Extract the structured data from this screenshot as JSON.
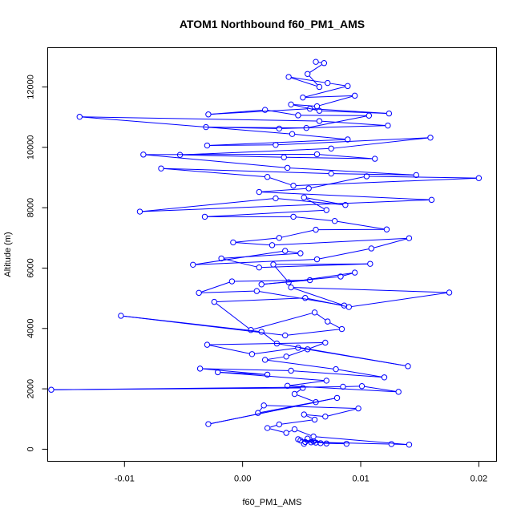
{
  "chart_data": {
    "type": "line",
    "title": "ATOM1 Northbound f60_PM1_AMS",
    "xlabel": "f60_PM1_AMS",
    "ylabel": "Altitude (m)",
    "xlim": [
      -0.0165,
      0.0215
    ],
    "ylim": [
      -400,
      13300
    ],
    "xticks": [
      -0.01,
      0.0,
      0.01,
      0.02
    ],
    "xtick_labels": [
      "-0.01",
      "0.00",
      "0.01",
      "0.02"
    ],
    "yticks": [
      0,
      2000,
      4000,
      6000,
      8000,
      10000,
      12000
    ],
    "ytick_labels": [
      "0",
      "2000",
      "4000",
      "6000",
      "8000",
      "10000",
      "12000"
    ],
    "grid": false,
    "legend": "none",
    "series": [
      {
        "color": "#0000ff",
        "marker": "open-circle",
        "x": [
          0.0052,
          0.0058,
          0.0049,
          0.0062,
          0.0055,
          0.0071,
          0.006,
          0.0047,
          0.0066,
          0.0088,
          0.0053,
          0.0126,
          0.0141,
          0.006,
          0.0044,
          0.0037,
          0.0021,
          0.0031,
          0.0061,
          0.0052,
          0.007,
          0.0098,
          0.0018,
          0.0013,
          0.008,
          -0.0029,
          0.0062,
          0.0044,
          0.0051,
          -0.0162,
          0.0085,
          0.0101,
          0.0132,
          0.0038,
          0.0071,
          -0.0021,
          0.0021,
          -0.0036,
          0.0041,
          0.012,
          0.0079,
          0.0019,
          0.0037,
          0.0055,
          0.007,
          -0.003,
          0.0008,
          0.0047,
          0.014,
          0.0029,
          0.0016,
          -0.0103,
          0.0036,
          0.0084,
          0.0072,
          0.0061,
          0.0007,
          -0.0024,
          0.0053,
          0.009,
          0.0175,
          0.0041,
          0.0086,
          0.0012,
          -0.0037,
          -0.0009,
          0.0057,
          0.0016,
          0.0083,
          0.0095,
          0.0039,
          0.0026,
          0.0108,
          0.0014,
          -0.0018,
          0.0049,
          0.0036,
          -0.0042,
          0.0063,
          0.0109,
          0.0141,
          0.0025,
          -0.0008,
          0.0031,
          0.0062,
          0.0122,
          0.0078,
          0.0043,
          -0.0032,
          0.0071,
          0.0052,
          0.0087,
          0.0028,
          -0.0087,
          0.016,
          0.0014,
          0.0056,
          0.0105,
          0.02,
          0.0043,
          0.0021,
          -0.0069,
          0.0075,
          0.0147,
          0.0038,
          -0.0084,
          0.0063,
          0.0112,
          0.0035,
          -0.0053,
          0.0075,
          0.0159,
          0.0028,
          -0.003,
          0.0089,
          0.0042,
          -0.0138,
          0.0065,
          0.0123,
          0.0031,
          -0.0031,
          0.0054,
          0.0107,
          0.0047,
          0.0019,
          -0.0029,
          0.0057,
          0.0124,
          0.0065,
          0.0041,
          0.0063,
          0.0095,
          0.0051,
          0.0089,
          0.0072,
          0.0039,
          0.0065,
          0.0055,
          0.0069,
          0.0062
        ],
        "y": [
          180,
          230,
          290,
          220,
          350,
          190,
          260,
          330,
          200,
          180,
          240,
          170,
          150,
          420,
          660,
          540,
          700,
          820,
          980,
          1150,
          1080,
          1350,
          1450,
          1200,
          1700,
          830,
          1560,
          1830,
          2030,
          1970,
          2070,
          2090,
          1900,
          2100,
          2270,
          2550,
          2470,
          2670,
          2600,
          2380,
          2650,
          2960,
          3070,
          3310,
          3530,
          3460,
          3150,
          3360,
          2750,
          3500,
          3890,
          4420,
          3770,
          3980,
          4230,
          4530,
          3950,
          4880,
          5010,
          4710,
          5190,
          5360,
          4760,
          5240,
          5180,
          5560,
          5600,
          5460,
          5720,
          5850,
          5530,
          6120,
          6140,
          6020,
          6320,
          6490,
          6570,
          6110,
          6290,
          6650,
          6990,
          6760,
          6850,
          7000,
          7270,
          7280,
          7560,
          7700,
          7700,
          7920,
          8340,
          8090,
          8310,
          7870,
          8260,
          8520,
          8640,
          9040,
          8980,
          8730,
          9020,
          9300,
          9130,
          9080,
          9320,
          9760,
          9770,
          9620,
          9670,
          9750,
          9960,
          10320,
          10080,
          10060,
          10260,
          10440,
          11010,
          10870,
          10720,
          10620,
          10670,
          10640,
          11050,
          11060,
          11240,
          11090,
          11280,
          11120,
          11210,
          11420,
          11360,
          11710,
          11650,
          12030,
          12130,
          12330,
          12000,
          12430,
          12790,
          12830
        ]
      }
    ]
  }
}
